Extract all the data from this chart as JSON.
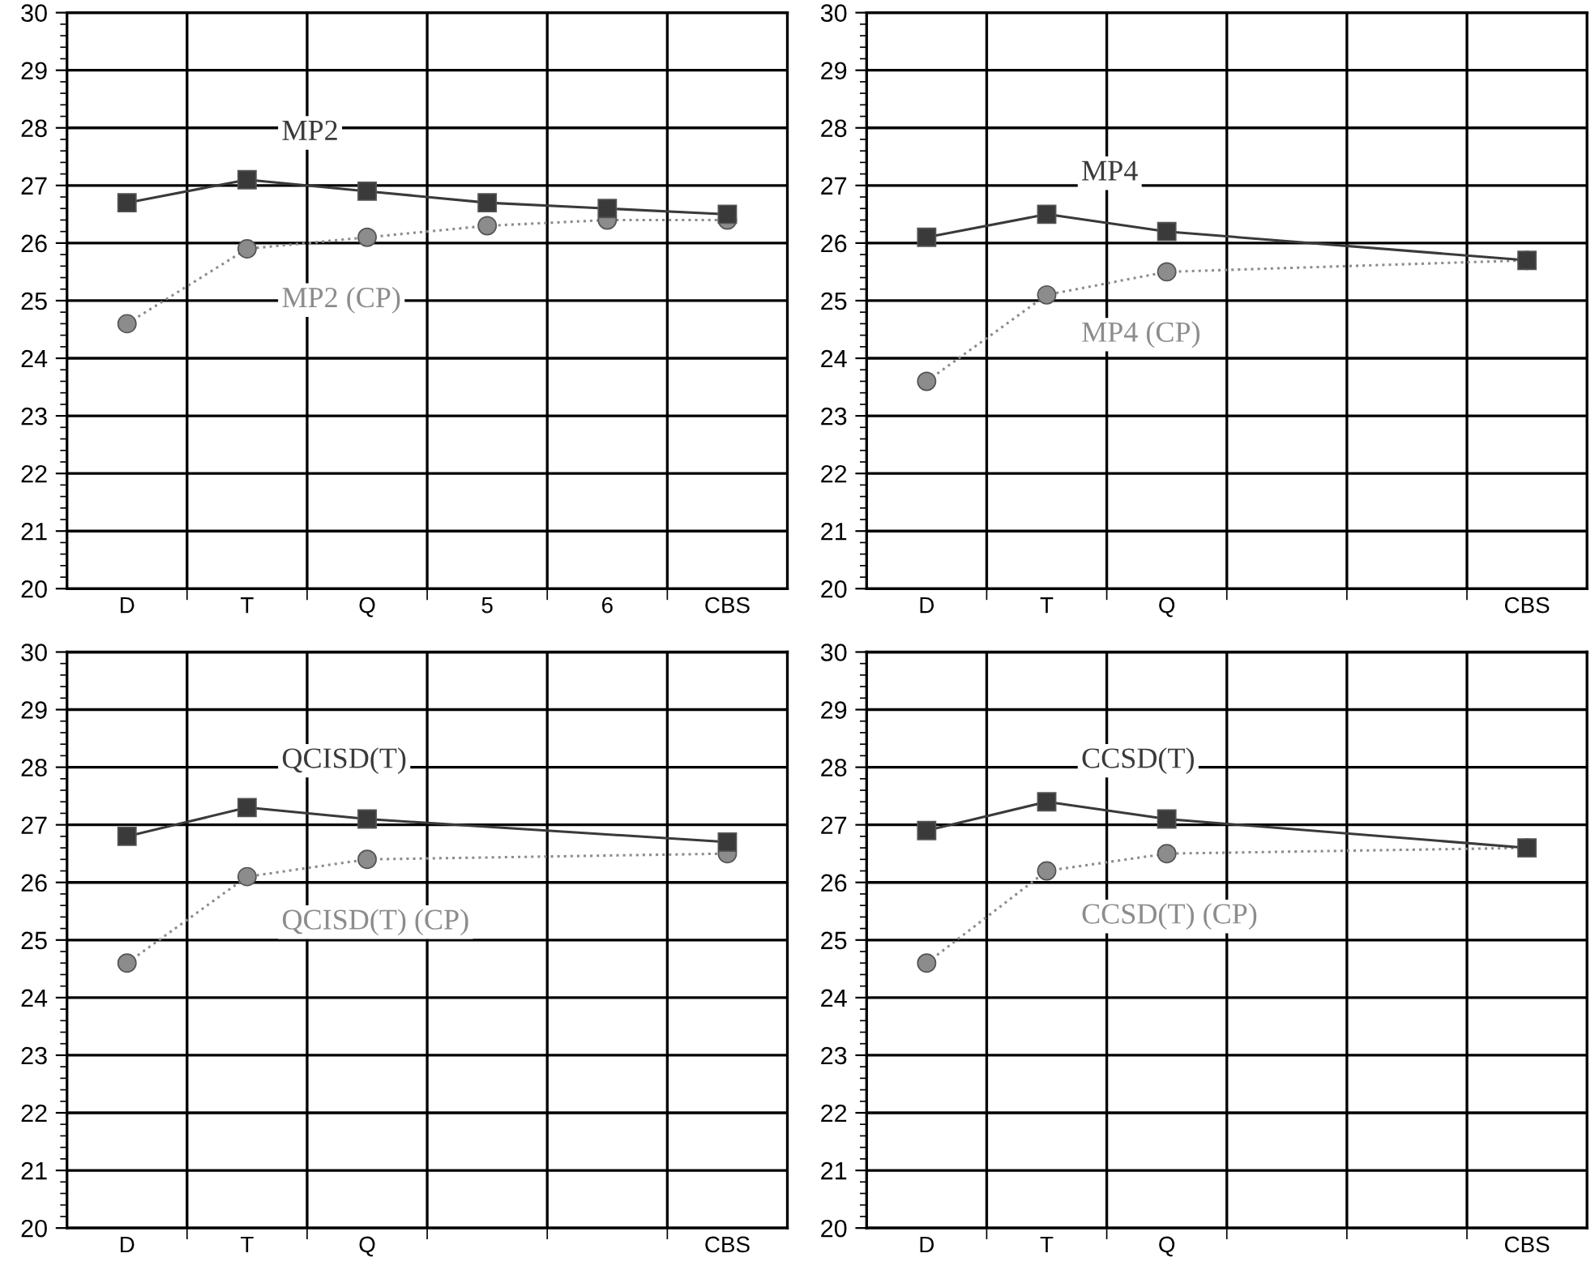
{
  "chart_data": [
    {
      "type": "line",
      "categories": [
        "D",
        "T",
        "Q",
        "5",
        "6",
        "CBS"
      ],
      "ylim": [
        20,
        30
      ],
      "yticks": [
        20,
        21,
        22,
        23,
        24,
        25,
        26,
        27,
        28,
        29,
        30
      ],
      "grid": true,
      "legend": false,
      "series": [
        {
          "name": "MP2",
          "color": "#3a3a3a",
          "marker": "square",
          "line_style": "solid",
          "values": [
            26.7,
            27.1,
            26.9,
            26.7,
            26.6,
            26.5
          ]
        },
        {
          "name": "MP2 (CP)",
          "color": "#8c8c8c",
          "marker": "circle",
          "line_style": "dotted",
          "values": [
            24.6,
            25.9,
            26.1,
            26.3,
            26.4,
            26.4
          ]
        }
      ]
    },
    {
      "type": "line",
      "categories": [
        "D",
        "T",
        "Q",
        null,
        null,
        "CBS"
      ],
      "ylim": [
        20,
        30
      ],
      "yticks": [
        20,
        21,
        22,
        23,
        24,
        25,
        26,
        27,
        28,
        29,
        30
      ],
      "grid": true,
      "legend": false,
      "series": [
        {
          "name": "MP4",
          "color": "#3a3a3a",
          "marker": "square",
          "line_style": "solid",
          "values": [
            26.1,
            26.5,
            26.2,
            null,
            null,
            25.7
          ]
        },
        {
          "name": "MP4 (CP)",
          "color": "#8c8c8c",
          "marker": "circle",
          "line_style": "dotted",
          "values": [
            23.6,
            25.1,
            25.5,
            null,
            null,
            25.7
          ]
        }
      ]
    },
    {
      "type": "line",
      "categories": [
        "D",
        "T",
        "Q",
        null,
        null,
        "CBS"
      ],
      "ylim": [
        20,
        30
      ],
      "yticks": [
        20,
        21,
        22,
        23,
        24,
        25,
        26,
        27,
        28,
        29,
        30
      ],
      "grid": true,
      "legend": false,
      "series": [
        {
          "name": "QCISD(T)",
          "color": "#3a3a3a",
          "marker": "square",
          "line_style": "solid",
          "values": [
            26.8,
            27.3,
            27.1,
            null,
            null,
            26.7
          ]
        },
        {
          "name": "QCISD(T) (CP)",
          "color": "#8c8c8c",
          "marker": "circle",
          "line_style": "dotted",
          "values": [
            24.6,
            26.1,
            26.4,
            null,
            null,
            26.5
          ]
        }
      ]
    },
    {
      "type": "line",
      "categories": [
        "D",
        "T",
        "Q",
        null,
        null,
        "CBS"
      ],
      "ylim": [
        20,
        30
      ],
      "yticks": [
        20,
        21,
        22,
        23,
        24,
        25,
        26,
        27,
        28,
        29,
        30
      ],
      "grid": true,
      "legend": false,
      "series": [
        {
          "name": "CCSD(T)",
          "color": "#3a3a3a",
          "marker": "square",
          "line_style": "solid",
          "values": [
            26.9,
            27.4,
            27.1,
            null,
            null,
            26.6
          ]
        },
        {
          "name": "CCSD(T) (CP)",
          "color": "#8c8c8c",
          "marker": "circle",
          "line_style": "dotted",
          "values": [
            24.6,
            26.2,
            26.5,
            null,
            null,
            26.6
          ]
        }
      ]
    }
  ]
}
